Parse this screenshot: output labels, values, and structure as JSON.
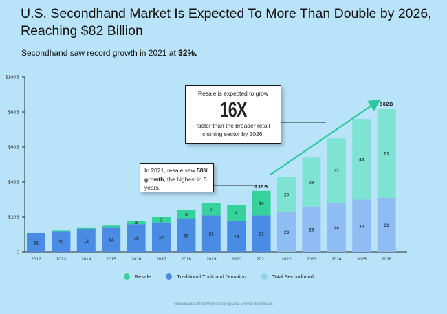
{
  "header": {
    "title": "U.S. Secondhand Market Is Expected To More Than Double by 2026, Reaching $82 Billion",
    "subtitle_text": "Secondhand saw record growth in 2021 at ",
    "subtitle_highlight": "32%."
  },
  "callouts": {
    "big": {
      "top": "Resale is expected to grow",
      "big": "16X",
      "bottom": "faster than the broader retail clothing sector by 2026."
    },
    "small": {
      "pre": "In 2021, resale saw ",
      "bold": "58% growth",
      "post": ", the highest in 5 years."
    }
  },
  "legend": {
    "resale": "Resale",
    "thrift": "Traditional Thrift and Donation",
    "total": "Total Secondhand"
  },
  "source": "GlobalData 2022 Market Sizing and Growth Estimates",
  "colors": {
    "resale": "#35d39b",
    "thrift": "#4a8ce3",
    "resale_forecast": "#7ee3d2",
    "thrift_forecast": "#8fbcf2",
    "background": "#b9e3f8",
    "arrow": "#2cc69b"
  },
  "chart_data": {
    "type": "bar",
    "stacked": true,
    "categories": [
      "2012",
      "2013",
      "2014",
      "2015",
      "2016",
      "2017",
      "2018",
      "2019",
      "2020",
      "2021",
      "2022",
      "2023",
      "2024",
      "2025",
      "2026"
    ],
    "forecast_from": "2022",
    "series": [
      {
        "name": "Traditional Thrift and Donation",
        "values": [
          11,
          12,
          13,
          14,
          16,
          17,
          19,
          21,
          18,
          21,
          23,
          26,
          28,
          30,
          31
        ],
        "labels": [
          "11",
          "12",
          "13",
          "14",
          "16",
          "17",
          "19",
          "21",
          "18",
          "21",
          "23",
          "26",
          "28",
          "30",
          "31"
        ]
      },
      {
        "name": "Resale",
        "values": [
          0,
          0.4,
          0.8,
          1.2,
          2,
          3,
          5,
          7,
          9,
          14,
          20,
          28,
          37,
          46,
          51
        ],
        "labels": [
          "",
          "",
          "",
          "",
          "2",
          "3",
          "5",
          "7",
          "9",
          "14",
          "20",
          "28",
          "37",
          "46",
          "51"
        ]
      }
    ],
    "total_labels": [
      {
        "category": "2021",
        "text": "$35B"
      },
      {
        "category": "2026",
        "text": "$82B"
      }
    ],
    "y_ticks": [
      "0",
      "$20B",
      "$40B",
      "$60B",
      "$80B",
      "$100B"
    ],
    "y_tick_values": [
      0,
      20,
      40,
      60,
      80,
      100
    ],
    "ylim": [
      0,
      100
    ],
    "grid": false
  }
}
